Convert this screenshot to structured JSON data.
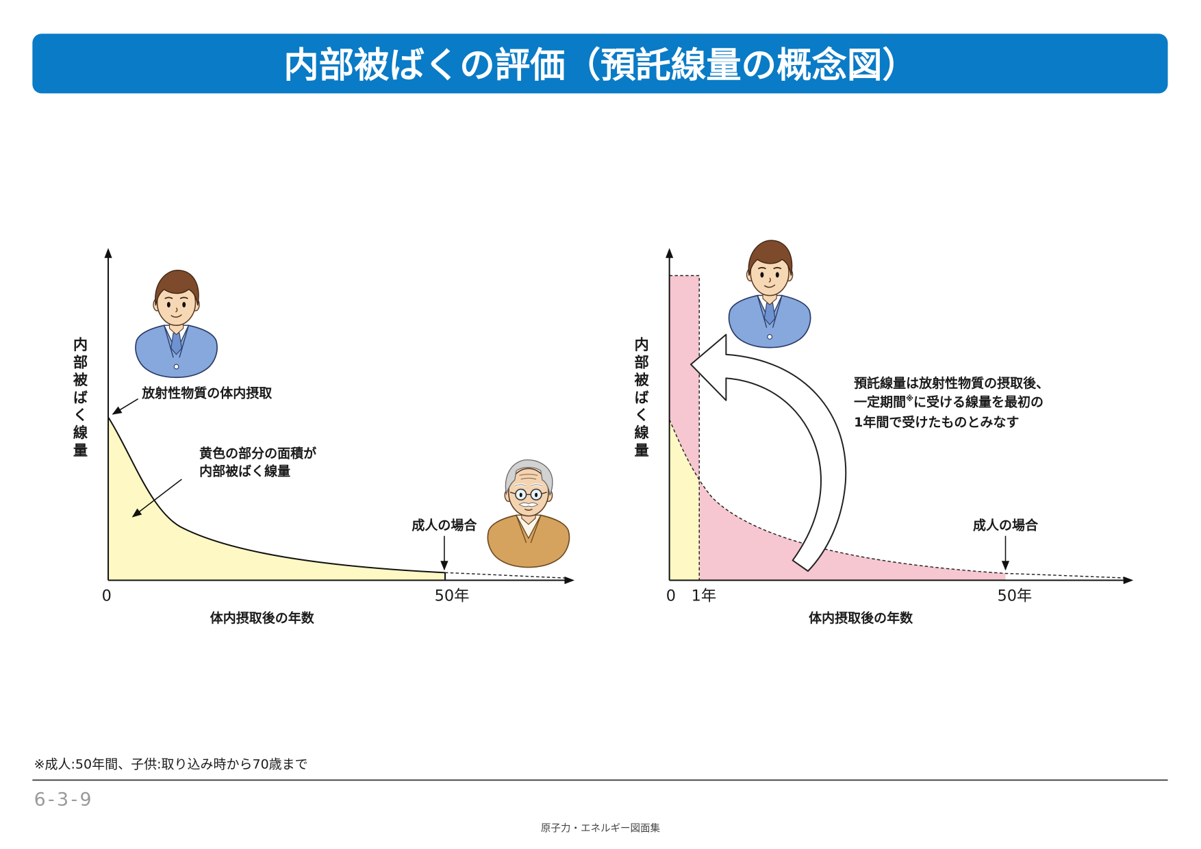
{
  "title": "内部被ばくの評価（預託線量の概念図）",
  "left_panel": {
    "y_axis_label": "内部被ばく線量",
    "x_axis_label": "体内摂取後の年数",
    "x_ticks": [
      "0",
      "50年"
    ],
    "intake_label": "放射性物質の体内摂取",
    "area_note": [
      "黄色の部分の面積が",
      "内部被ばく線量"
    ],
    "adult_label": "成人の場合"
  },
  "right_panel": {
    "y_axis_label": "内部被ばく線量",
    "x_axis_label": "体内摂取後の年数",
    "x_ticks": [
      "0",
      "1年",
      "50年"
    ],
    "note": {
      "line1": "預託線量は放射性物質の摂取後、",
      "line2_a": "一定期間",
      "line2_mark": "※",
      "line2_b": "に受ける線量を最初の",
      "line3": "1年間で受けたものとみなす"
    },
    "adult_label": "成人の場合"
  },
  "footnote": "※成人:50年間、子供:取り込み時から70歳まで",
  "page_number": "6-3-9",
  "footer_source": "原子力・エネルギー図面集",
  "colors": {
    "title_bar": "#0a7bc6",
    "dose_area_yellow": "#fdf8c4",
    "committed_dose_pink": "#f6c7d1",
    "suit_blue": "#86a8dc",
    "suit_tan": "#d6a35e"
  }
}
